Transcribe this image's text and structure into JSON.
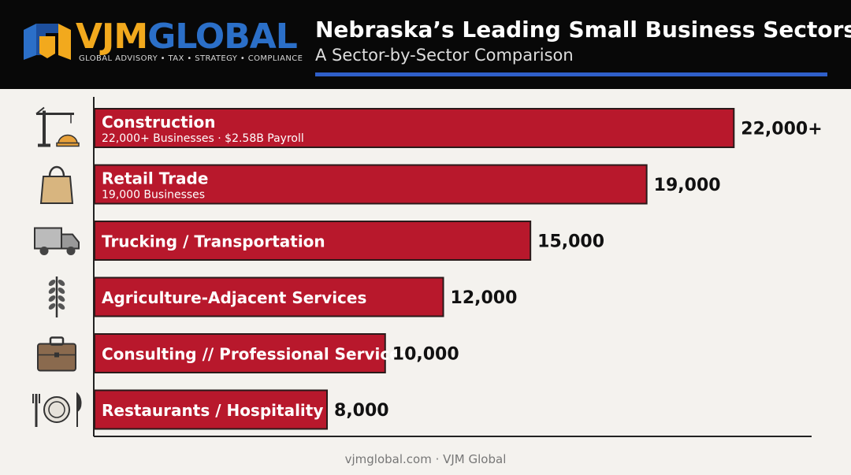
{
  "brand": {
    "name_part1": "VJM",
    "name_part2": "GLOBAL",
    "tagline": "GLOBAL ADVISORY • TAX • STRATEGY • COMPLIANCE"
  },
  "header": {
    "title": "Nebraska’s Leading Small Business Sectors",
    "subtitle": "A Sector-by-Sector Comparison"
  },
  "colors": {
    "bar": "#b8182c",
    "bar_border": "#2a1a1a",
    "accent_rule": "#2f5fc9",
    "header_bg": "#080808",
    "background": "#f4f2ee"
  },
  "chart_data": {
    "type": "bar",
    "orientation": "horizontal",
    "categories": [
      "Construction",
      "Retail Trade",
      "Trucking / Transportation",
      "Agriculture-Adjacent Services",
      "Consulting // Professional Services",
      "Restaurants / Hospitality"
    ],
    "values": [
      22000,
      19000,
      15000,
      12000,
      10000,
      8000
    ],
    "value_labels": [
      "22,000+",
      "19,000",
      "15,000",
      "12,000",
      "10,000",
      "8,000"
    ],
    "bar_sublabels": [
      "22,000+ Businesses · $2.58B Payroll",
      "19,000 Businesses",
      "",
      "",
      "",
      ""
    ],
    "icons": [
      "construction-crane-icon",
      "shopping-bag-icon",
      "truck-icon",
      "wheat-icon",
      "briefcase-icon",
      "plate-cutlery-icon"
    ],
    "xlim": [
      0,
      25300
    ],
    "grid": false,
    "legend": "none",
    "title": "Nebraska’s Leading Small Business Sectors",
    "xlabel": "",
    "ylabel": ""
  },
  "footer": {
    "text": "vjmglobal.com · VJM Global"
  }
}
